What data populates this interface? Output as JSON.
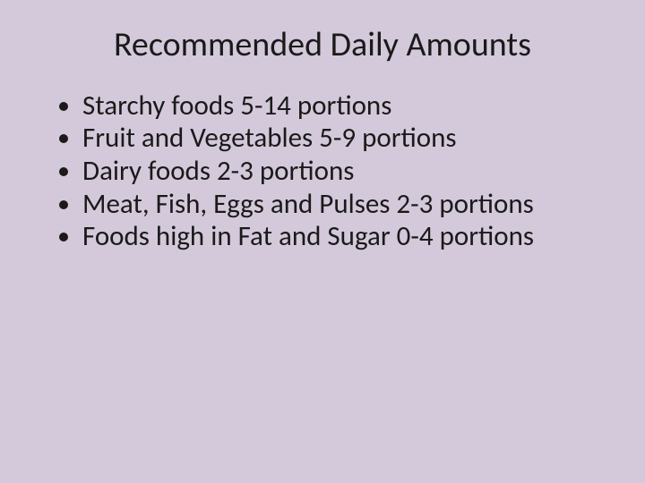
{
  "slide": {
    "background_color": "#d4c9da",
    "text_color": "#1a1a1a",
    "title": "Recommended Daily Amounts",
    "title_fontsize": 38,
    "title_fontweight": 400,
    "body_fontsize": 31,
    "body_fontweight": 400,
    "bullets": [
      "Starchy foods 5-14 portions",
      "Fruit and Vegetables 5-9 portions",
      "Dairy foods 2-3 portions",
      "Meat, Fish, Eggs and Pulses 2-3 portions",
      "Foods high in Fat and Sugar 0-4 portions"
    ]
  }
}
